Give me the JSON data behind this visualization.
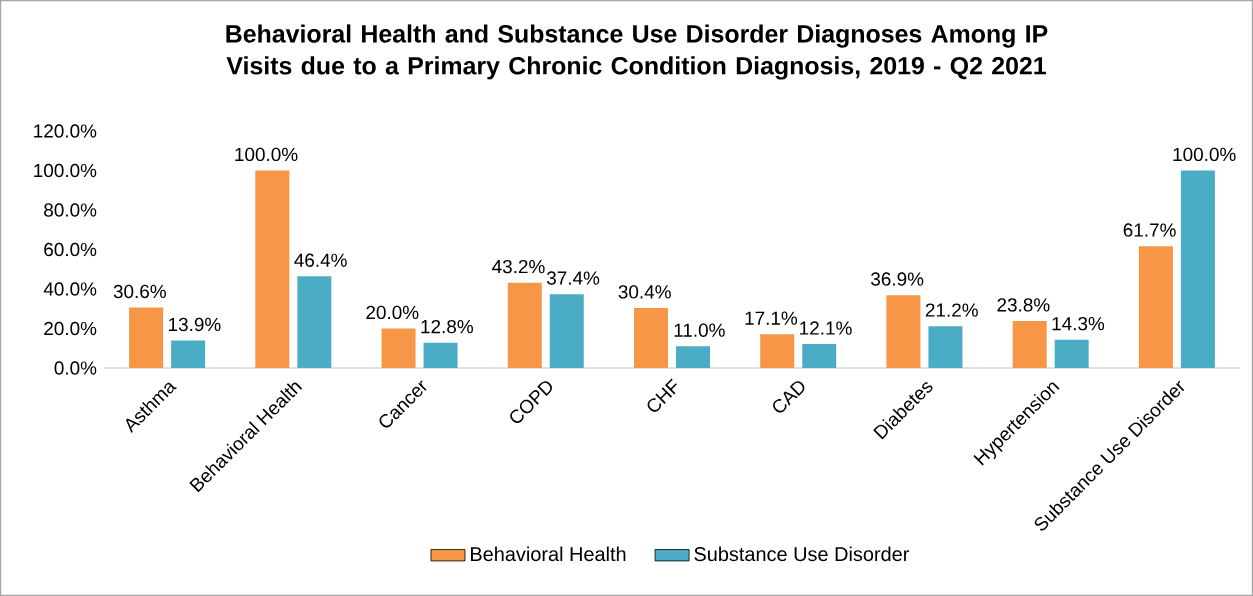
{
  "chart_data": {
    "type": "bar",
    "title": "Behavioral Health and Substance Use Disorder Diagnoses Among IP Visits due to a Primary Chronic Condition Diagnosis, 2019 - Q2 2021",
    "categories": [
      "Asthma",
      "Behavioral Health",
      "Cancer",
      "COPD",
      "CHF",
      "CAD",
      "Diabetes",
      "Hypertension",
      "Substance Use Disorder"
    ],
    "series": [
      {
        "name": "Behavioral Health",
        "color": "#f79646",
        "values": [
          30.6,
          100.0,
          20.0,
          43.2,
          30.4,
          17.1,
          36.9,
          23.8,
          61.7
        ],
        "value_labels": [
          "30.6%",
          "100.0%",
          "20.0%",
          "43.2%",
          "30.4%",
          "17.1%",
          "36.9%",
          "23.8%",
          "61.7%"
        ]
      },
      {
        "name": "Substance Use Disorder",
        "color": "#4bacc6",
        "values": [
          13.9,
          46.4,
          12.8,
          37.4,
          11.0,
          12.1,
          21.2,
          14.3,
          100.0
        ],
        "value_labels": [
          "13.9%",
          "46.4%",
          "12.8%",
          "37.4%",
          "11.0%",
          "12.1%",
          "21.2%",
          "14.3%",
          "100.0%"
        ]
      }
    ],
    "ylim": [
      0,
      120
    ],
    "yticks": [
      {
        "value": 0,
        "label": "0.0%"
      },
      {
        "value": 20,
        "label": "20.0%"
      },
      {
        "value": 40,
        "label": "40.0%"
      },
      {
        "value": 60,
        "label": "60.0%"
      },
      {
        "value": 80,
        "label": "80.0%"
      },
      {
        "value": 100,
        "label": "100.0%"
      },
      {
        "value": 120,
        "label": "120.0%"
      }
    ],
    "legend": "bottom"
  }
}
